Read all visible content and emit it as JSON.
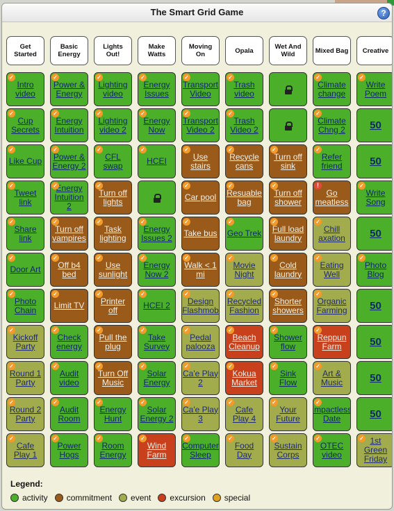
{
  "window": {
    "title": "The Smart Grid Game",
    "help_label": "?"
  },
  "colors": {
    "activity": "#4caf2a",
    "commitment": "#9a5a1a",
    "event": "#a2ac4c",
    "excursion": "#c8401c",
    "special": "#e0a020"
  },
  "categories": [
    {
      "label": "Get Started"
    },
    {
      "label": "Basic Energy"
    },
    {
      "label": "Lights Out!"
    },
    {
      "label": "Make Watts"
    },
    {
      "label": "Moving On"
    },
    {
      "label": "Opala"
    },
    {
      "label": "Wet And Wild"
    },
    {
      "label": "Mixed Bag"
    },
    {
      "label": "Creative"
    }
  ],
  "rows": [
    [
      {
        "label": "Intro video",
        "type": "activity",
        "check": true
      },
      {
        "label": "Power & Energy",
        "type": "activity",
        "check": true
      },
      {
        "label": "Lighting video",
        "type": "activity",
        "check": true
      },
      {
        "label": "Energy Issues",
        "type": "activity",
        "check": true
      },
      {
        "label": "Transport Video",
        "type": "activity",
        "check": true
      },
      {
        "label": "Trash video",
        "type": "activity",
        "check": true
      },
      {
        "label": "",
        "type": "locked",
        "icon": "lock-icon"
      },
      {
        "label": "Climate change",
        "type": "activity",
        "check": true
      },
      {
        "label": "Write Poem",
        "type": "activity",
        "check": true
      }
    ],
    [
      {
        "label": "Cup Secrets",
        "type": "activity",
        "check": true
      },
      {
        "label": "Energy Intuition",
        "type": "activity",
        "check": true
      },
      {
        "label": "Lighting video 2",
        "type": "activity",
        "check": true
      },
      {
        "label": "Energy Now",
        "type": "activity",
        "check": true
      },
      {
        "label": "Transport Video 2",
        "type": "activity",
        "check": true
      },
      {
        "label": "Trash Video 2",
        "type": "activity",
        "check": true
      },
      {
        "label": "",
        "type": "locked",
        "icon": "lock-icon"
      },
      {
        "label": "Climate Chng 2",
        "type": "activity",
        "check": true
      },
      {
        "label": "50",
        "type": "score"
      }
    ],
    [
      {
        "label": "Like Cup",
        "type": "activity",
        "check": true
      },
      {
        "label": "Power & Energy 2",
        "type": "activity",
        "check": true
      },
      {
        "label": "CFL swap",
        "type": "activity",
        "check": true
      },
      {
        "label": "HCEI",
        "type": "activity",
        "check": true
      },
      {
        "label": "Use stairs",
        "type": "commitment",
        "check": true
      },
      {
        "label": "Recycle cans",
        "type": "commitment",
        "check": true
      },
      {
        "label": "Turn off sink",
        "type": "commitment",
        "check": true
      },
      {
        "label": "Refer friend",
        "type": "activity",
        "check": true
      },
      {
        "label": "50",
        "type": "score"
      }
    ],
    [
      {
        "label": "Tweet link",
        "type": "activity",
        "check": true
      },
      {
        "label": "Energy Intuition 2",
        "type": "activity",
        "check": true
      },
      {
        "label": "Turn off lights",
        "type": "commitment",
        "check": true
      },
      {
        "label": "",
        "type": "locked",
        "icon": "lock-icon"
      },
      {
        "label": "Car pool",
        "type": "commitment",
        "check": true
      },
      {
        "label": "Resuable bag",
        "type": "commitment",
        "check": true
      },
      {
        "label": "Turn off shower",
        "type": "commitment",
        "check": true
      },
      {
        "label": "Go meatless",
        "type": "commitment",
        "alert": true
      },
      {
        "label": "Write Song",
        "type": "activity",
        "check": true
      }
    ],
    [
      {
        "label": "Share link",
        "type": "activity",
        "check": true
      },
      {
        "label": "Turn off vampires",
        "type": "commitment",
        "check": true
      },
      {
        "label": "Task lighting",
        "type": "commitment",
        "check": true
      },
      {
        "label": "Energy Issues 2",
        "type": "activity",
        "check": true
      },
      {
        "label": "Take bus",
        "type": "commitment",
        "check": true
      },
      {
        "label": "Geo Trek",
        "type": "activity",
        "check": true
      },
      {
        "label": "Full load laundry",
        "type": "commitment",
        "check": true
      },
      {
        "label": "Chill axation",
        "type": "event",
        "check": true
      },
      {
        "label": "50",
        "type": "score"
      }
    ],
    [
      {
        "label": "Door Art",
        "type": "activity",
        "check": true
      },
      {
        "label": "Off b4 bed",
        "type": "commitment",
        "check": true
      },
      {
        "label": "Use sunlight",
        "type": "commitment",
        "check": true
      },
      {
        "label": "Energy Now 2",
        "type": "activity",
        "check": true
      },
      {
        "label": "Walk < 1 mi",
        "type": "commitment",
        "check": true
      },
      {
        "label": "Movie Night",
        "type": "event",
        "check": true
      },
      {
        "label": "Cold laundry",
        "type": "commitment",
        "check": true
      },
      {
        "label": "Eating Well",
        "type": "event",
        "check": true
      },
      {
        "label": "Photo Blog",
        "type": "activity",
        "check": true
      }
    ],
    [
      {
        "label": "Photo Chain",
        "type": "activity",
        "check": true
      },
      {
        "label": "Limit TV",
        "type": "commitment",
        "check": true
      },
      {
        "label": "Printer off",
        "type": "commitment",
        "check": true
      },
      {
        "label": "HCEI 2",
        "type": "activity",
        "check": true
      },
      {
        "label": "Design Flashmob",
        "type": "event",
        "check": true
      },
      {
        "label": "Recycled Fashion",
        "type": "event",
        "check": true
      },
      {
        "label": "Shorter showers",
        "type": "commitment",
        "check": true
      },
      {
        "label": "Organic Farming",
        "type": "event",
        "check": true
      },
      {
        "label": "50",
        "type": "score"
      }
    ],
    [
      {
        "label": "Kickoff Party",
        "type": "event",
        "check": true
      },
      {
        "label": "Check energy",
        "type": "activity",
        "check": true
      },
      {
        "label": "Pull the plug",
        "type": "commitment",
        "check": true
      },
      {
        "label": "Take Survey",
        "type": "activity",
        "check": true
      },
      {
        "label": "Pedal palooza",
        "type": "event",
        "check": true
      },
      {
        "label": "Beach Cleanup",
        "type": "excursion",
        "check": true
      },
      {
        "label": "Shower flow",
        "type": "activity",
        "check": true
      },
      {
        "label": "Reppun Farm",
        "type": "excursion",
        "check": true
      },
      {
        "label": "50",
        "type": "score"
      }
    ],
    [
      {
        "label": "Round 1 Party",
        "type": "event",
        "check": true
      },
      {
        "label": "Audit video",
        "type": "activity",
        "check": true
      },
      {
        "label": "Turn Off Music",
        "type": "commitment",
        "check": true
      },
      {
        "label": "Solar Energy",
        "type": "activity",
        "check": true
      },
      {
        "label": "Ca'e Play 2",
        "type": "event",
        "check": true
      },
      {
        "label": "Kokua Market",
        "type": "excursion",
        "check": true
      },
      {
        "label": "Sink Flow",
        "type": "activity",
        "check": true
      },
      {
        "label": "Art & Music",
        "type": "event",
        "check": true
      },
      {
        "label": "50",
        "type": "score"
      }
    ],
    [
      {
        "label": "Round 2 Party",
        "type": "event",
        "check": true
      },
      {
        "label": "Audit Room",
        "type": "activity",
        "check": true
      },
      {
        "label": "Energy Hunt",
        "type": "activity",
        "check": true
      },
      {
        "label": "Solar Energy 2",
        "type": "activity",
        "check": true
      },
      {
        "label": "Ca'e Play 3",
        "type": "event",
        "check": true
      },
      {
        "label": "Cafe Play 4",
        "type": "event",
        "check": true
      },
      {
        "label": "Your Future",
        "type": "event",
        "check": true
      },
      {
        "label": "Impactless Date",
        "type": "activity",
        "check": true
      },
      {
        "label": "50",
        "type": "score"
      }
    ],
    [
      {
        "label": "Cafe Play 1",
        "type": "event",
        "check": true
      },
      {
        "label": "Power Hogs",
        "type": "activity",
        "check": true
      },
      {
        "label": "Room Energy",
        "type": "activity",
        "check": true
      },
      {
        "label": "Wind Farm",
        "type": "excursion",
        "check": true
      },
      {
        "label": "Computer Sleep",
        "type": "activity",
        "check": true
      },
      {
        "label": "Food Day",
        "type": "event",
        "check": true
      },
      {
        "label": "Sustain Corps",
        "type": "event",
        "check": true
      },
      {
        "label": "OTEC video",
        "type": "activity",
        "check": true
      },
      {
        "label": "1st Green Friday",
        "type": "event",
        "check": true
      }
    ]
  ],
  "legend": {
    "title": "Legend:",
    "items": [
      {
        "label": "activity",
        "color": "#4caf2a"
      },
      {
        "label": "commitment",
        "color": "#9a5a1a"
      },
      {
        "label": "event",
        "color": "#a2ac4c"
      },
      {
        "label": "excursion",
        "color": "#c8401c"
      },
      {
        "label": "special",
        "color": "#e0a020"
      }
    ]
  }
}
